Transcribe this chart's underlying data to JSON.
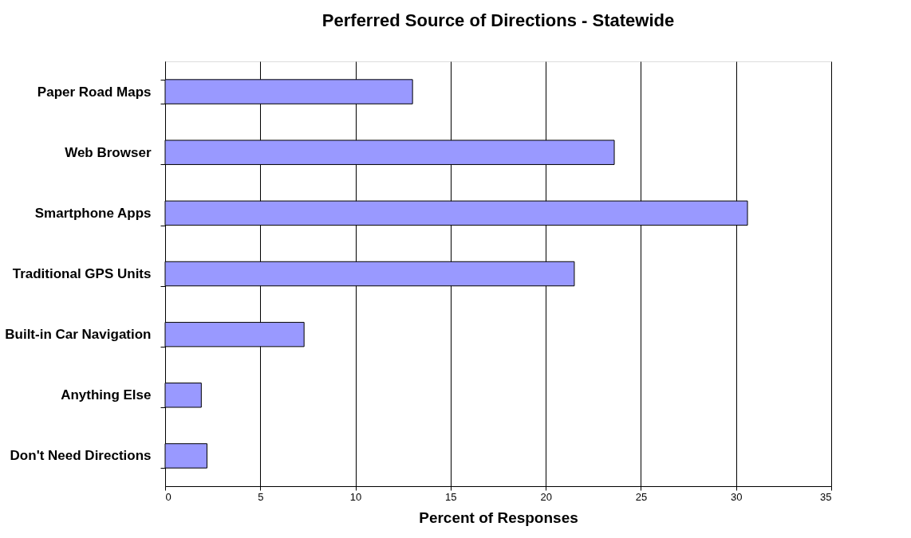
{
  "chart_data": {
    "type": "bar",
    "orientation": "horizontal",
    "title": "Perferred Source of Directions - Statewide",
    "xlabel": "Percent of Responses",
    "categories": [
      "Paper Road Maps",
      "Web Browser",
      "Smartphone Apps",
      "Traditional GPS Units",
      "Built-in Car Navigation",
      "Anything Else",
      "Don't Need Directions"
    ],
    "values": [
      13.0,
      23.6,
      30.6,
      21.5,
      7.3,
      1.9,
      2.2
    ],
    "color": "#9999ff",
    "xlim": [
      0,
      35
    ],
    "xticks": [
      0,
      5,
      10,
      15,
      20,
      25,
      30,
      35
    ],
    "grid": "x"
  }
}
